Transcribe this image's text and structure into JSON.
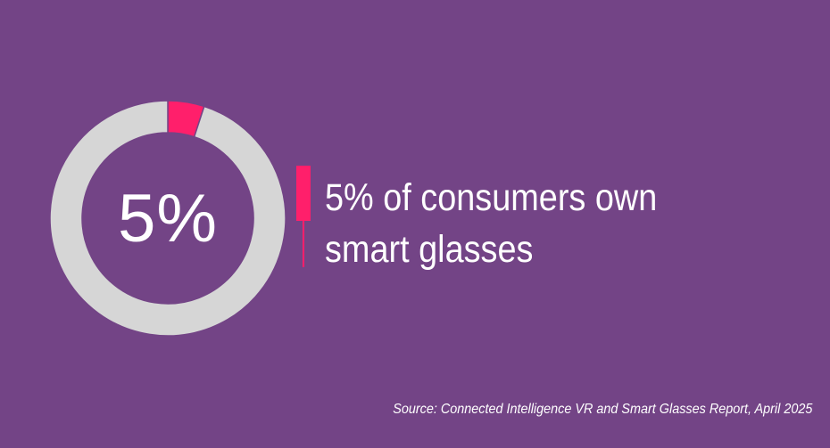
{
  "colors": {
    "background": "#734486",
    "ring": "#d6d6d6",
    "accent": "#ff1f6b",
    "text": "#ffffff"
  },
  "chart_data": {
    "type": "pie",
    "style": "donut",
    "center_label": "5%",
    "slices": [
      {
        "value": 5,
        "color": "#ff1f6b"
      },
      {
        "value": 95,
        "color": "#d6d6d6"
      }
    ]
  },
  "headline": "5% of consumers own smart glasses",
  "source": "Source: Connected Intelligence VR and Smart Glasses Report, April 2025"
}
